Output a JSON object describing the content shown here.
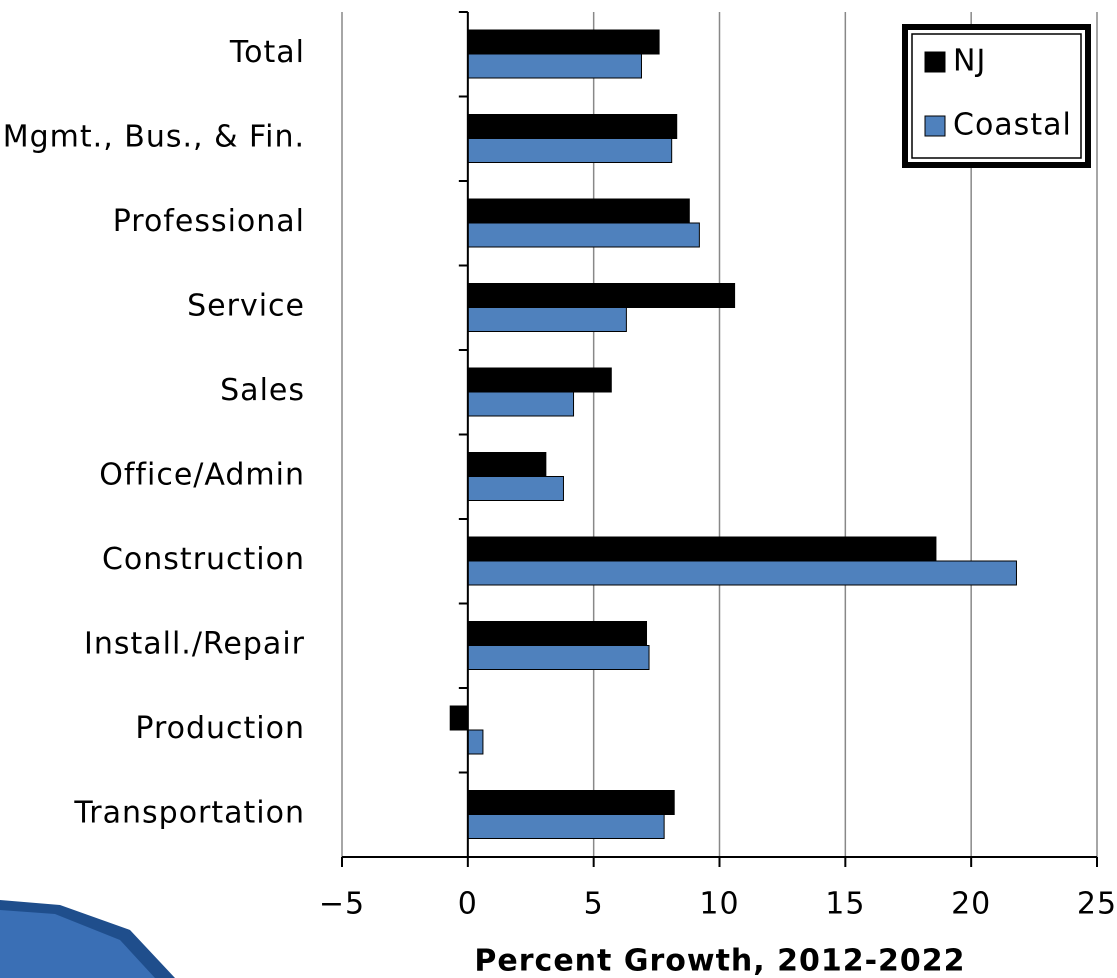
{
  "chart_data": {
    "type": "barh",
    "categories": [
      "Total",
      "Mgmt., Bus., & Fin.",
      "Professional",
      "Service",
      "Sales",
      "Office/Admin",
      "Construction",
      "Install./Repair",
      "Production",
      "Transportation"
    ],
    "series": [
      {
        "name": "NJ",
        "color": "#000000",
        "values": [
          7.6,
          8.3,
          8.8,
          10.6,
          5.7,
          3.1,
          18.6,
          7.1,
          -0.7,
          8.2
        ]
      },
      {
        "name": "Coastal",
        "color": "#4f81bd",
        "values": [
          6.9,
          8.1,
          9.2,
          6.3,
          4.2,
          3.8,
          21.8,
          7.2,
          0.6,
          7.8
        ]
      }
    ],
    "xlabel": "Percent Growth, 2012-2022",
    "xlim": [
      -5,
      25
    ],
    "xticks": [
      {
        "value": -5,
        "label": "−5"
      },
      0,
      5,
      10,
      15,
      20,
      25
    ],
    "grid": true,
    "legend": "upper right"
  }
}
